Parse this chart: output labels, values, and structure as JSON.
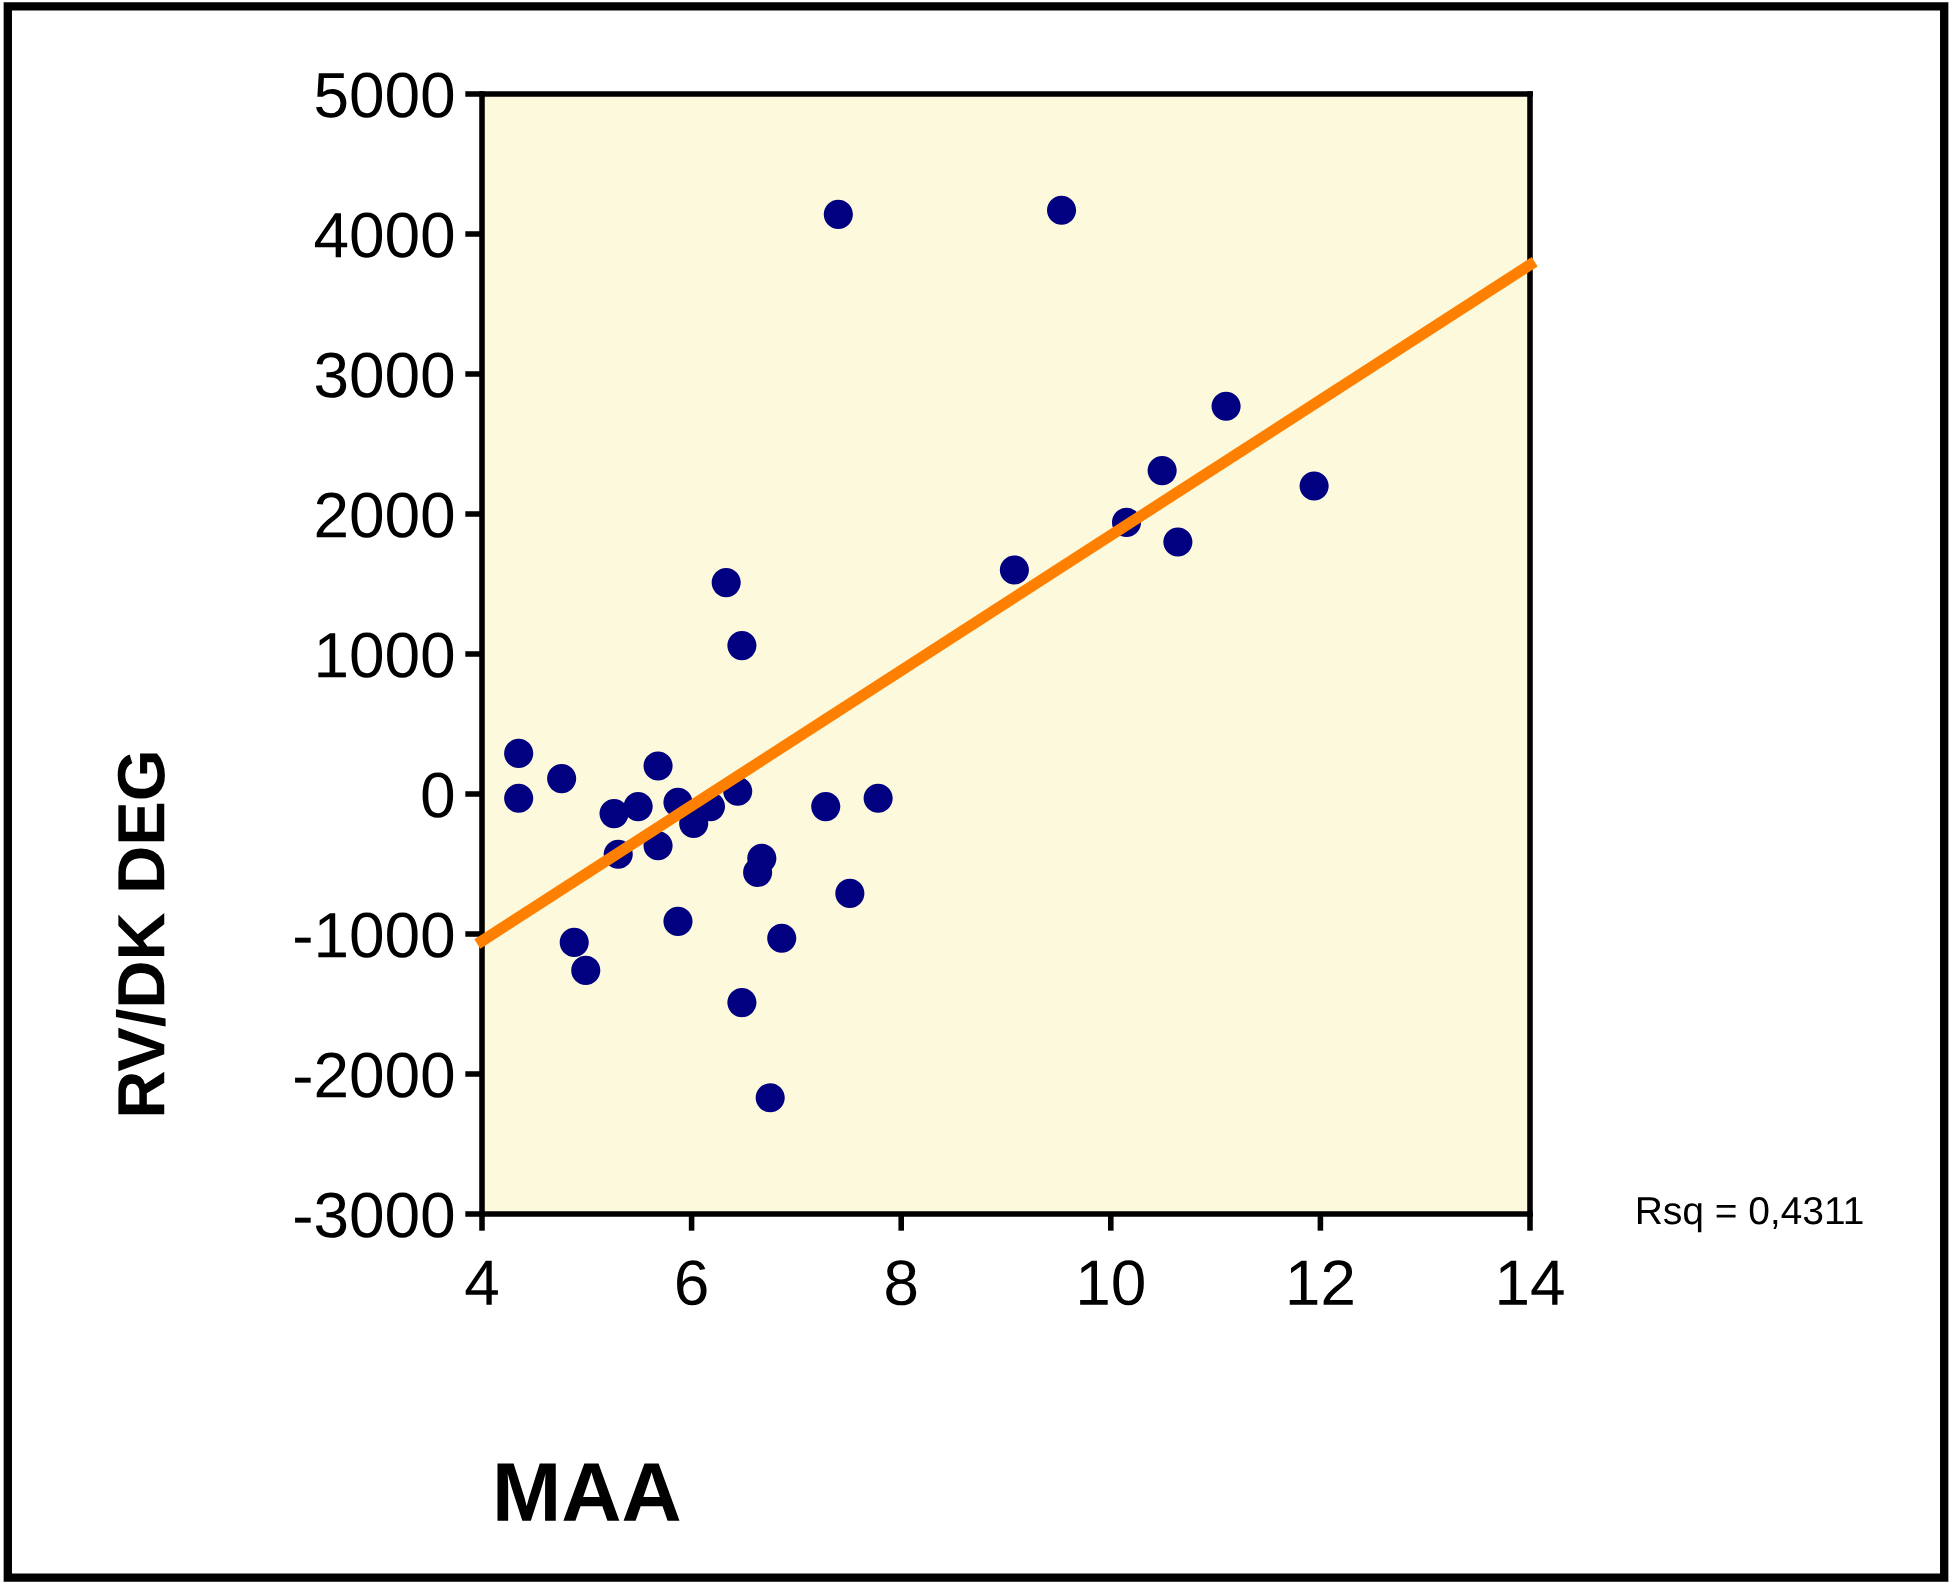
{
  "chart_data": {
    "type": "scatter",
    "xlabel": "MAA",
    "ylabel": "RV/DK DEG",
    "annotations": [
      "Rsq = 0,4311"
    ],
    "xlim": [
      4,
      14
    ],
    "xticks": [
      4,
      6,
      8,
      10,
      12,
      14
    ],
    "ylim": [
      -3000,
      5000
    ],
    "yticks": [
      -3000,
      -2000,
      -1000,
      0,
      1000,
      2000,
      3000,
      4000,
      5000
    ],
    "grid": false,
    "marker": "circle",
    "series": [
      {
        "color": "#000080",
        "x": [
          4.35,
          4.35,
          4.76,
          5.26,
          5.49,
          5.68,
          5.3,
          5.68,
          5.87,
          6.02,
          6.18,
          6.44,
          4.88,
          4.99,
          5.87,
          6.48,
          6.75,
          6.86,
          6.63,
          6.67,
          6.33,
          6.48,
          7.28,
          7.51,
          7.78,
          7.4,
          9.53,
          9.08,
          10.15,
          10.49,
          10.64,
          11.1,
          11.94
        ],
        "values": [
          290,
          -30,
          110,
          -140,
          -90,
          200,
          -430,
          -370,
          -60,
          -210,
          -90,
          20,
          -1060,
          -1260,
          -910,
          -1490,
          -2170,
          -1030,
          -560,
          -460,
          1510,
          1060,
          -90,
          -710,
          -30,
          4140,
          4170,
          1600,
          1940,
          2310,
          1800,
          2770,
          2200
        ]
      },
      {
        "type": "line",
        "color": "#ff8000",
        "x": [
          4,
          14
        ],
        "values": [
          -1050,
          3780
        ],
        "marker": "none"
      }
    ]
  }
}
